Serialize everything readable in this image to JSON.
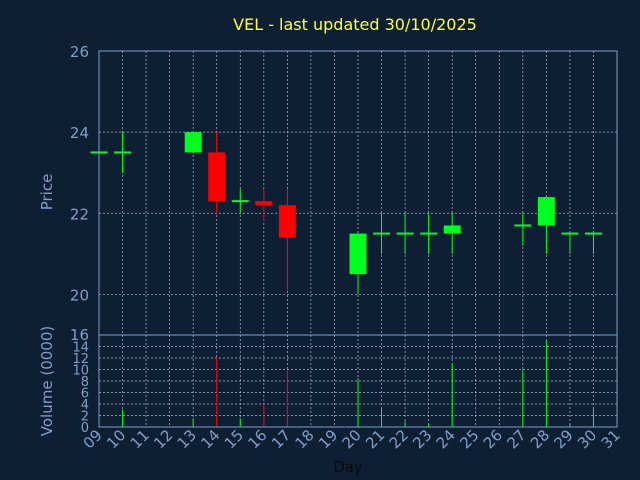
{
  "chart_data": {
    "type": "candlestick",
    "title": "VEL - last updated 30/10/2025",
    "xlabel": "Day",
    "ylabel_price": "Price",
    "ylabel_volume": "Volume (0000)",
    "grid": true,
    "x_ticks": [
      "09",
      "10",
      "11",
      "12",
      "13",
      "14",
      "15",
      "16",
      "17",
      "18",
      "19",
      "20",
      "21",
      "22",
      "23",
      "24",
      "25",
      "26",
      "27",
      "28",
      "29",
      "30",
      "31"
    ],
    "price_ticks": [
      20,
      22,
      24,
      26
    ],
    "price_ylim": [
      19,
      26
    ],
    "volume_ticks": [
      0,
      2,
      4,
      6,
      8,
      10,
      12,
      14,
      16
    ],
    "volume_ylim": [
      0,
      16
    ],
    "colors": {
      "up": "#00ff1e",
      "down": "#ff0000",
      "background": "#0f1f33",
      "axis": "#7f9fc8",
      "title": "#ffff33"
    },
    "candles": [
      {
        "day": 9,
        "open": 23.5,
        "high": 23.5,
        "low": 23.5,
        "close": 23.5,
        "volume": 0.3
      },
      {
        "day": 10,
        "open": 23.5,
        "high": 24.0,
        "low": 23.0,
        "close": 23.5,
        "volume": 3.0
      },
      {
        "day": 13,
        "open": 23.5,
        "high": 24.0,
        "low": 23.5,
        "close": 24.0,
        "volume": 1.5
      },
      {
        "day": 14,
        "open": 23.5,
        "high": 24.0,
        "low": 22.0,
        "close": 22.3,
        "volume": 12.0
      },
      {
        "day": 15,
        "open": 22.3,
        "high": 22.6,
        "low": 22.0,
        "close": 22.3,
        "volume": 1.5
      },
      {
        "day": 16,
        "open": 22.3,
        "high": 22.6,
        "low": 21.8,
        "close": 22.2,
        "volume": 4.0
      },
      {
        "day": 17,
        "open": 22.2,
        "high": 22.6,
        "low": 20.1,
        "close": 21.4,
        "volume": 10.0
      },
      {
        "day": 20,
        "open": 20.5,
        "high": 21.5,
        "low": 20.0,
        "close": 21.5,
        "volume": 8.5
      },
      {
        "day": 21,
        "open": 21.5,
        "high": 22.0,
        "low": 21.0,
        "close": 21.5,
        "volume": 3.5
      },
      {
        "day": 22,
        "open": 21.5,
        "high": 22.0,
        "low": 21.0,
        "close": 21.5,
        "volume": 1.0
      },
      {
        "day": 23,
        "open": 21.5,
        "high": 22.0,
        "low": 21.0,
        "close": 21.5,
        "volume": 0.5
      },
      {
        "day": 24,
        "open": 21.5,
        "high": 22.0,
        "low": 21.0,
        "close": 21.7,
        "volume": 11.0
      },
      {
        "day": 27,
        "open": 21.7,
        "high": 22.0,
        "low": 21.2,
        "close": 21.7,
        "volume": 10.0
      },
      {
        "day": 28,
        "open": 21.7,
        "high": 22.4,
        "low": 21.0,
        "close": 22.4,
        "volume": 15.0
      },
      {
        "day": 29,
        "open": 21.5,
        "high": 21.5,
        "low": 21.0,
        "close": 21.5,
        "volume": 0.5
      },
      {
        "day": 30,
        "open": 21.5,
        "high": 21.5,
        "low": 21.0,
        "close": 21.5,
        "volume": 3.5
      }
    ]
  }
}
